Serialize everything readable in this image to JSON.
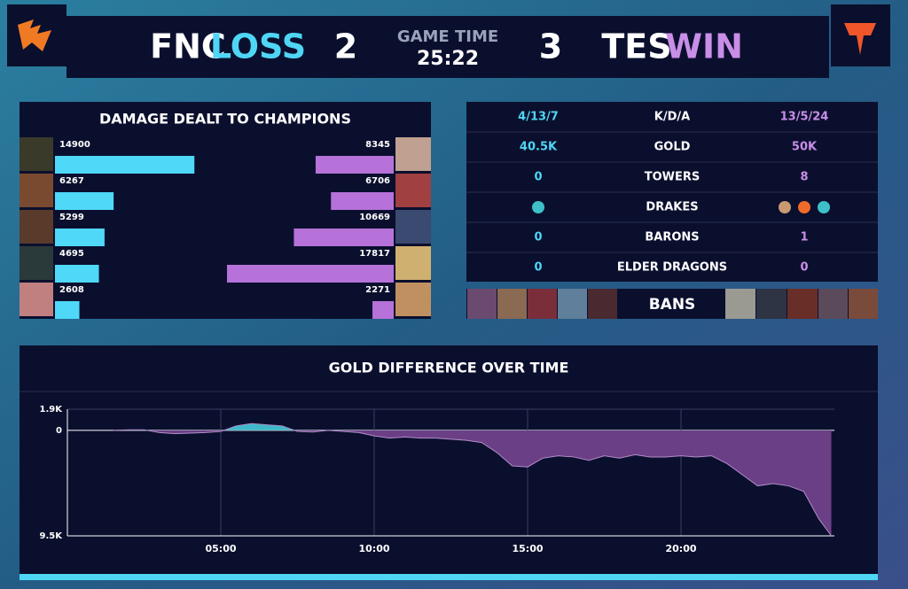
{
  "header": {
    "left": {
      "tag": "FNC",
      "result": "LOSS",
      "score": 2
    },
    "game_time_label": "GAME TIME",
    "game_time": "25:22",
    "right": {
      "tag": "TES",
      "result": "WIN",
      "score": 3
    }
  },
  "damage": {
    "title": "DAMAGE DEALT TO CHAMPIONS",
    "left_values": [
      14900,
      6267,
      5299,
      4695,
      2608
    ],
    "right_values": [
      8345,
      6706,
      10669,
      17817,
      2271
    ],
    "left_color": "#4fd8f8",
    "right_color": "#b672d8"
  },
  "stats": {
    "rows": [
      {
        "left": "4/13/7",
        "label": "K/D/A",
        "right": "13/5/24"
      },
      {
        "left": "40.5K",
        "label": "GOLD",
        "right": "50K"
      },
      {
        "left": 0,
        "label": "TOWERS",
        "right": 8
      },
      {
        "label": "DRAKES"
      },
      {
        "left": 0,
        "label": "BARONS",
        "right": 1
      },
      {
        "left": 0,
        "label": "ELDER DRAGONS",
        "right": 0
      }
    ]
  },
  "bans_label": "BANS",
  "chart_data": {
    "type": "line",
    "title": "GOLD DIFFERENCE OVER TIME",
    "x": [
      1.5,
      2,
      2.5,
      3,
      3.5,
      4,
      4.5,
      5,
      5.5,
      6,
      6.5,
      7,
      7.5,
      8,
      8.5,
      9,
      9.5,
      10,
      10.5,
      11,
      11.5,
      12,
      12.5,
      13,
      13.5,
      14,
      14.5,
      15,
      15.5,
      16,
      16.5,
      17,
      17.5,
      18,
      18.5,
      19,
      19.5,
      20,
      20.5,
      21,
      21.5,
      22,
      22.5,
      23,
      23.5,
      24,
      24.5,
      24.9
    ],
    "values": [
      0,
      50,
      50,
      -200,
      -300,
      -250,
      -200,
      -100,
      400,
      600,
      500,
      400,
      -100,
      -150,
      0,
      -100,
      -200,
      -500,
      -700,
      -600,
      -700,
      -700,
      -800,
      -900,
      -1100,
      -2000,
      -3200,
      -3300,
      -2500,
      -2300,
      -2400,
      -2700,
      -2300,
      -2500,
      -2200,
      -2400,
      -2400,
      -2300,
      -2400,
      -2300,
      -3000,
      -4000,
      -5000,
      -4800,
      -5000,
      -5500,
      -8000,
      -9500
    ],
    "xlim": [
      0,
      25
    ],
    "xticks": [
      {
        "value": 5,
        "label": "05:00"
      },
      {
        "value": 10,
        "label": "10:00"
      },
      {
        "value": 15,
        "label": "15:00"
      },
      {
        "value": 20,
        "label": "20:00"
      }
    ],
    "ylim": [
      -9500,
      1900
    ],
    "yticks": [
      {
        "value": 1900,
        "label": "1.9K"
      },
      0,
      {
        "value": -9500,
        "label": "9.5K"
      }
    ],
    "positive_color": "#3fb9c9",
    "negative_color": "#6b3f86",
    "grid": true
  }
}
